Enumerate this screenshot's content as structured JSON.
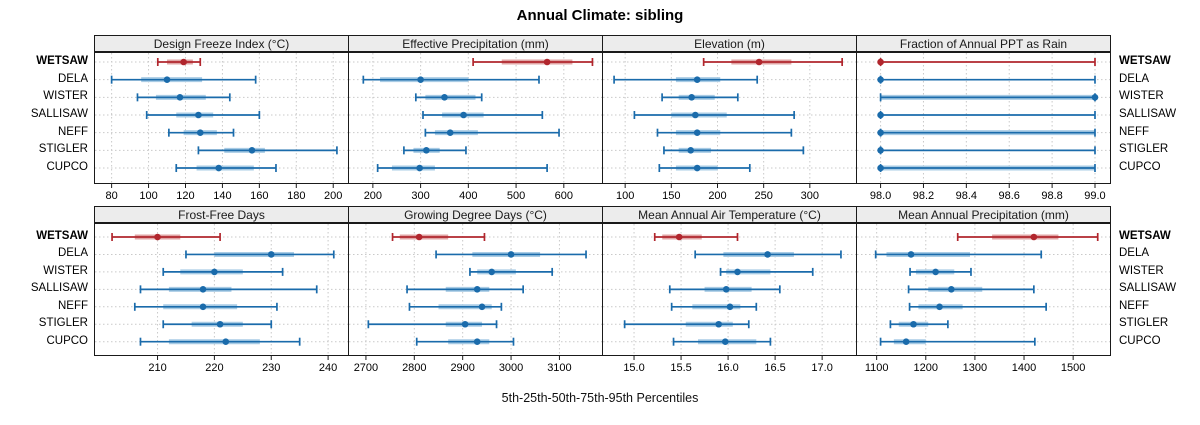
{
  "title": "Annual Climate: sibling",
  "caption": "5th-25th-50th-75th-95th Percentiles",
  "stations": [
    "WETSAW",
    "DELA",
    "WISTER",
    "SALLISAW",
    "NEFF",
    "STIGLER",
    "CUPCO"
  ],
  "highlight_station": "WETSAW",
  "percentile_labels": [
    "5th",
    "25th",
    "50th",
    "75th",
    "95th"
  ],
  "colors": {
    "series_blue": "#1A6BAB",
    "series_blue_light": "#A9CCE5",
    "highlight_red": "#B1262D",
    "highlight_red_light": "#E0A5A5",
    "panel_border": "#1a1a1a",
    "header_bg": "#ececec",
    "grid": "#c9c9c9"
  },
  "chart_data": [
    {
      "type": "scatter",
      "mark": "median-dot-with-percentile-intervals",
      "title": "Design Freeze Index (°C)",
      "row": 0,
      "col": 0,
      "xlim": [
        71,
        208
      ],
      "tick_values": [
        80,
        100,
        120,
        140,
        160,
        180,
        200
      ],
      "tick_labels": [
        "80",
        "100",
        "120",
        "140",
        "160",
        "180",
        "200"
      ],
      "series": [
        {
          "name": "WETSAW",
          "percentiles": [
            105,
            110,
            119,
            124,
            128
          ]
        },
        {
          "name": "DELA",
          "percentiles": [
            80,
            96,
            110,
            129,
            158
          ]
        },
        {
          "name": "WISTER",
          "percentiles": [
            94,
            104,
            117,
            131,
            144
          ]
        },
        {
          "name": "SALLISAW",
          "percentiles": [
            99,
            115,
            127,
            135,
            160
          ]
        },
        {
          "name": "NEFF",
          "percentiles": [
            111,
            119,
            128,
            137,
            146
          ]
        },
        {
          "name": "STIGLER",
          "percentiles": [
            127,
            141,
            156,
            163,
            202
          ]
        },
        {
          "name": "CUPCO",
          "percentiles": [
            115,
            126,
            138,
            157,
            169
          ]
        }
      ]
    },
    {
      "type": "scatter",
      "mark": "median-dot-with-percentile-intervals",
      "title": "Effective Precipitation (mm)",
      "row": 0,
      "col": 1,
      "xlim": [
        150,
        680
      ],
      "tick_values": [
        200,
        300,
        400,
        500,
        600
      ],
      "tick_labels": [
        "200",
        "300",
        "400",
        "500",
        "600"
      ],
      "series": [
        {
          "name": "WETSAW",
          "percentiles": [
            410,
            470,
            565,
            618,
            660
          ]
        },
        {
          "name": "DELA",
          "percentiles": [
            180,
            215,
            300,
            400,
            548
          ]
        },
        {
          "name": "WISTER",
          "percentiles": [
            290,
            310,
            350,
            415,
            428
          ]
        },
        {
          "name": "SALLISAW",
          "percentiles": [
            305,
            345,
            390,
            432,
            555
          ]
        },
        {
          "name": "NEFF",
          "percentiles": [
            310,
            330,
            362,
            420,
            590
          ]
        },
        {
          "name": "STIGLER",
          "percentiles": [
            265,
            285,
            312,
            340,
            395
          ]
        },
        {
          "name": "CUPCO",
          "percentiles": [
            210,
            240,
            298,
            330,
            565
          ]
        }
      ]
    },
    {
      "type": "scatter",
      "mark": "median-dot-with-percentile-intervals",
      "title": "Elevation (m)",
      "row": 0,
      "col": 2,
      "xlim": [
        76,
        350
      ],
      "tick_values": [
        100,
        150,
        200,
        250,
        300
      ],
      "tick_labels": [
        "100",
        "150",
        "200",
        "250",
        "300"
      ],
      "series": [
        {
          "name": "WETSAW",
          "percentiles": [
            185,
            215,
            245,
            280,
            335
          ]
        },
        {
          "name": "DELA",
          "percentiles": [
            88,
            155,
            178,
            203,
            243
          ]
        },
        {
          "name": "WISTER",
          "percentiles": [
            140,
            158,
            172,
            197,
            222
          ]
        },
        {
          "name": "SALLISAW",
          "percentiles": [
            110,
            150,
            176,
            210,
            283
          ]
        },
        {
          "name": "NEFF",
          "percentiles": [
            135,
            155,
            178,
            203,
            280
          ]
        },
        {
          "name": "STIGLER",
          "percentiles": [
            142,
            158,
            171,
            193,
            293
          ]
        },
        {
          "name": "CUPCO",
          "percentiles": [
            137,
            155,
            178,
            200,
            235
          ]
        }
      ]
    },
    {
      "type": "scatter",
      "mark": "median-dot-with-percentile-intervals",
      "title": "Fraction of Annual PPT as Rain",
      "row": 0,
      "col": 3,
      "xlim": [
        97.89,
        99.07
      ],
      "tick_values": [
        98.0,
        98.2,
        98.4,
        98.6,
        98.8,
        99.0
      ],
      "tick_labels": [
        "98.0",
        "98.2",
        "98.4",
        "98.6",
        "98.8",
        "99.0"
      ],
      "series": [
        {
          "name": "WETSAW",
          "percentiles": [
            98.0,
            98.0,
            98.0,
            98.0,
            99.0
          ]
        },
        {
          "name": "DELA",
          "percentiles": [
            98.0,
            98.0,
            98.0,
            98.0,
            99.0
          ]
        },
        {
          "name": "WISTER",
          "percentiles": [
            98.0,
            98.0,
            99.0,
            99.0,
            99.0
          ]
        },
        {
          "name": "SALLISAW",
          "percentiles": [
            98.0,
            98.0,
            98.0,
            98.0,
            99.0
          ]
        },
        {
          "name": "NEFF",
          "percentiles": [
            98.0,
            98.0,
            98.0,
            99.0,
            99.0
          ]
        },
        {
          "name": "STIGLER",
          "percentiles": [
            98.0,
            98.0,
            98.0,
            98.0,
            99.0
          ]
        },
        {
          "name": "CUPCO",
          "percentiles": [
            98.0,
            98.0,
            98.0,
            99.0,
            99.0
          ]
        }
      ]
    },
    {
      "type": "scatter",
      "mark": "median-dot-with-percentile-intervals",
      "title": "Frost-Free Days",
      "row": 1,
      "col": 0,
      "xlim": [
        199,
        243.5
      ],
      "tick_values": [
        210,
        220,
        230,
        240
      ],
      "tick_labels": [
        "210",
        "220",
        "230",
        "240"
      ],
      "series": [
        {
          "name": "WETSAW",
          "percentiles": [
            202,
            206,
            210,
            214,
            221
          ]
        },
        {
          "name": "DELA",
          "percentiles": [
            215,
            220,
            230,
            234,
            241
          ]
        },
        {
          "name": "WISTER",
          "percentiles": [
            211,
            214,
            220,
            225,
            232
          ]
        },
        {
          "name": "SALLISAW",
          "percentiles": [
            207,
            212,
            218,
            223,
            238
          ]
        },
        {
          "name": "NEFF",
          "percentiles": [
            206,
            211,
            218,
            224,
            231
          ]
        },
        {
          "name": "STIGLER",
          "percentiles": [
            211,
            216,
            221,
            225,
            230
          ]
        },
        {
          "name": "CUPCO",
          "percentiles": [
            207,
            212,
            222,
            228,
            235
          ]
        }
      ]
    },
    {
      "type": "scatter",
      "mark": "median-dot-with-percentile-intervals",
      "title": "Growing Degree Days (°C)",
      "row": 1,
      "col": 1,
      "xlim": [
        2665,
        3188
      ],
      "tick_values": [
        2700,
        2800,
        2900,
        3000,
        3100
      ],
      "tick_labels": [
        "2700",
        "2800",
        "2900",
        "3000",
        "3100"
      ],
      "series": [
        {
          "name": "WETSAW",
          "percentiles": [
            2755,
            2770,
            2810,
            2870,
            2945
          ]
        },
        {
          "name": "DELA",
          "percentiles": [
            2845,
            2920,
            3000,
            3060,
            3155
          ]
        },
        {
          "name": "WISTER",
          "percentiles": [
            2915,
            2930,
            2960,
            3010,
            3085
          ]
        },
        {
          "name": "SALLISAW",
          "percentiles": [
            2785,
            2865,
            2930,
            2955,
            3025
          ]
        },
        {
          "name": "NEFF",
          "percentiles": [
            2790,
            2850,
            2940,
            2960,
            2980
          ]
        },
        {
          "name": "STIGLER",
          "percentiles": [
            2705,
            2865,
            2905,
            2940,
            2970
          ]
        },
        {
          "name": "CUPCO",
          "percentiles": [
            2805,
            2870,
            2930,
            2955,
            3005
          ]
        }
      ]
    },
    {
      "type": "scatter",
      "mark": "median-dot-with-percentile-intervals",
      "title": "Mean Annual Air Temperature (°C)",
      "row": 1,
      "col": 2,
      "xlim": [
        14.67,
        17.36
      ],
      "tick_values": [
        15.0,
        15.5,
        16.0,
        16.5,
        17.0
      ],
      "tick_labels": [
        "15.0",
        "15.5",
        "16.0",
        "16.5",
        "17.0"
      ],
      "series": [
        {
          "name": "WETSAW",
          "percentiles": [
            15.22,
            15.3,
            15.48,
            15.72,
            16.1
          ]
        },
        {
          "name": "DELA",
          "percentiles": [
            15.65,
            15.95,
            16.42,
            16.7,
            17.2
          ]
        },
        {
          "name": "WISTER",
          "percentiles": [
            15.92,
            15.98,
            16.1,
            16.45,
            16.9
          ]
        },
        {
          "name": "SALLISAW",
          "percentiles": [
            15.38,
            15.75,
            15.98,
            16.25,
            16.55
          ]
        },
        {
          "name": "NEFF",
          "percentiles": [
            15.4,
            15.62,
            16.02,
            16.13,
            16.3
          ]
        },
        {
          "name": "STIGLER",
          "percentiles": [
            14.9,
            15.55,
            15.9,
            16.05,
            16.22
          ]
        },
        {
          "name": "CUPCO",
          "percentiles": [
            15.42,
            15.68,
            15.97,
            16.3,
            16.45
          ]
        }
      ]
    },
    {
      "type": "scatter",
      "mark": "median-dot-with-percentile-intervals",
      "title": "Mean Annual Precipitation (mm)",
      "row": 1,
      "col": 3,
      "xlim": [
        1060,
        1575
      ],
      "tick_values": [
        1100,
        1200,
        1300,
        1400,
        1500
      ],
      "tick_labels": [
        "1100",
        "1200",
        "1300",
        "1400",
        "1500"
      ],
      "series": [
        {
          "name": "WETSAW",
          "percentiles": [
            1265,
            1335,
            1420,
            1470,
            1550
          ]
        },
        {
          "name": "DELA",
          "percentiles": [
            1098,
            1120,
            1170,
            1290,
            1435
          ]
        },
        {
          "name": "WISTER",
          "percentiles": [
            1168,
            1180,
            1220,
            1258,
            1292
          ]
        },
        {
          "name": "SALLISAW",
          "percentiles": [
            1165,
            1205,
            1252,
            1315,
            1420
          ]
        },
        {
          "name": "NEFF",
          "percentiles": [
            1167,
            1185,
            1228,
            1275,
            1445
          ]
        },
        {
          "name": "STIGLER",
          "percentiles": [
            1128,
            1145,
            1175,
            1205,
            1245
          ]
        },
        {
          "name": "CUPCO",
          "percentiles": [
            1108,
            1135,
            1160,
            1200,
            1422
          ]
        }
      ]
    }
  ]
}
